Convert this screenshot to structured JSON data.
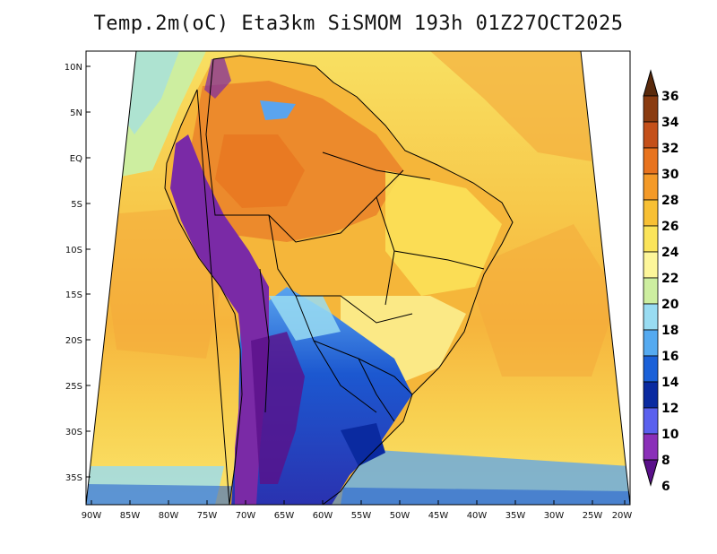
{
  "title": "Temp.2m(oC) Eta3km SiSMOM 193h 01Z27OCT2025",
  "latitude_labels": [
    "10N",
    "5N",
    "EQ",
    "5S",
    "10S",
    "15S",
    "20S",
    "25S",
    "30S",
    "35S"
  ],
  "longitude_labels": [
    "90W",
    "85W",
    "80W",
    "75W",
    "70W",
    "65W",
    "60W",
    "55W",
    "50W",
    "45W",
    "40W",
    "35W",
    "30W",
    "25W",
    "20W"
  ],
  "colorbar": {
    "labels": [
      "36",
      "34",
      "32",
      "30",
      "28",
      "26",
      "24",
      "22",
      "20",
      "18",
      "16",
      "14",
      "12",
      "10",
      "8",
      "6"
    ],
    "colors_top_to_bottom": [
      "#5a2a0c",
      "#8a3b10",
      "#c4501a",
      "#e8731e",
      "#f49a28",
      "#f8c034",
      "#fbe45a",
      "#fdf69a",
      "#cdeea0",
      "#99dcf2",
      "#55aaf0",
      "#1a60d8",
      "#0a2aa0",
      "#5a60ee",
      "#8a2fb8",
      "#5a108a"
    ],
    "max_label": "36",
    "min_label": "6"
  },
  "colors": {
    "ocean_warm": "#f6cf52",
    "ocean_mid": "#f4a93a",
    "ocean_cool": "#eef07a",
    "land_hot": "#ec8a2c",
    "land_warm": "#f5b63a",
    "andes": "#7a2aa6",
    "south_cold": "#2a3cc8",
    "south_mild": "#5a9ae8"
  }
}
